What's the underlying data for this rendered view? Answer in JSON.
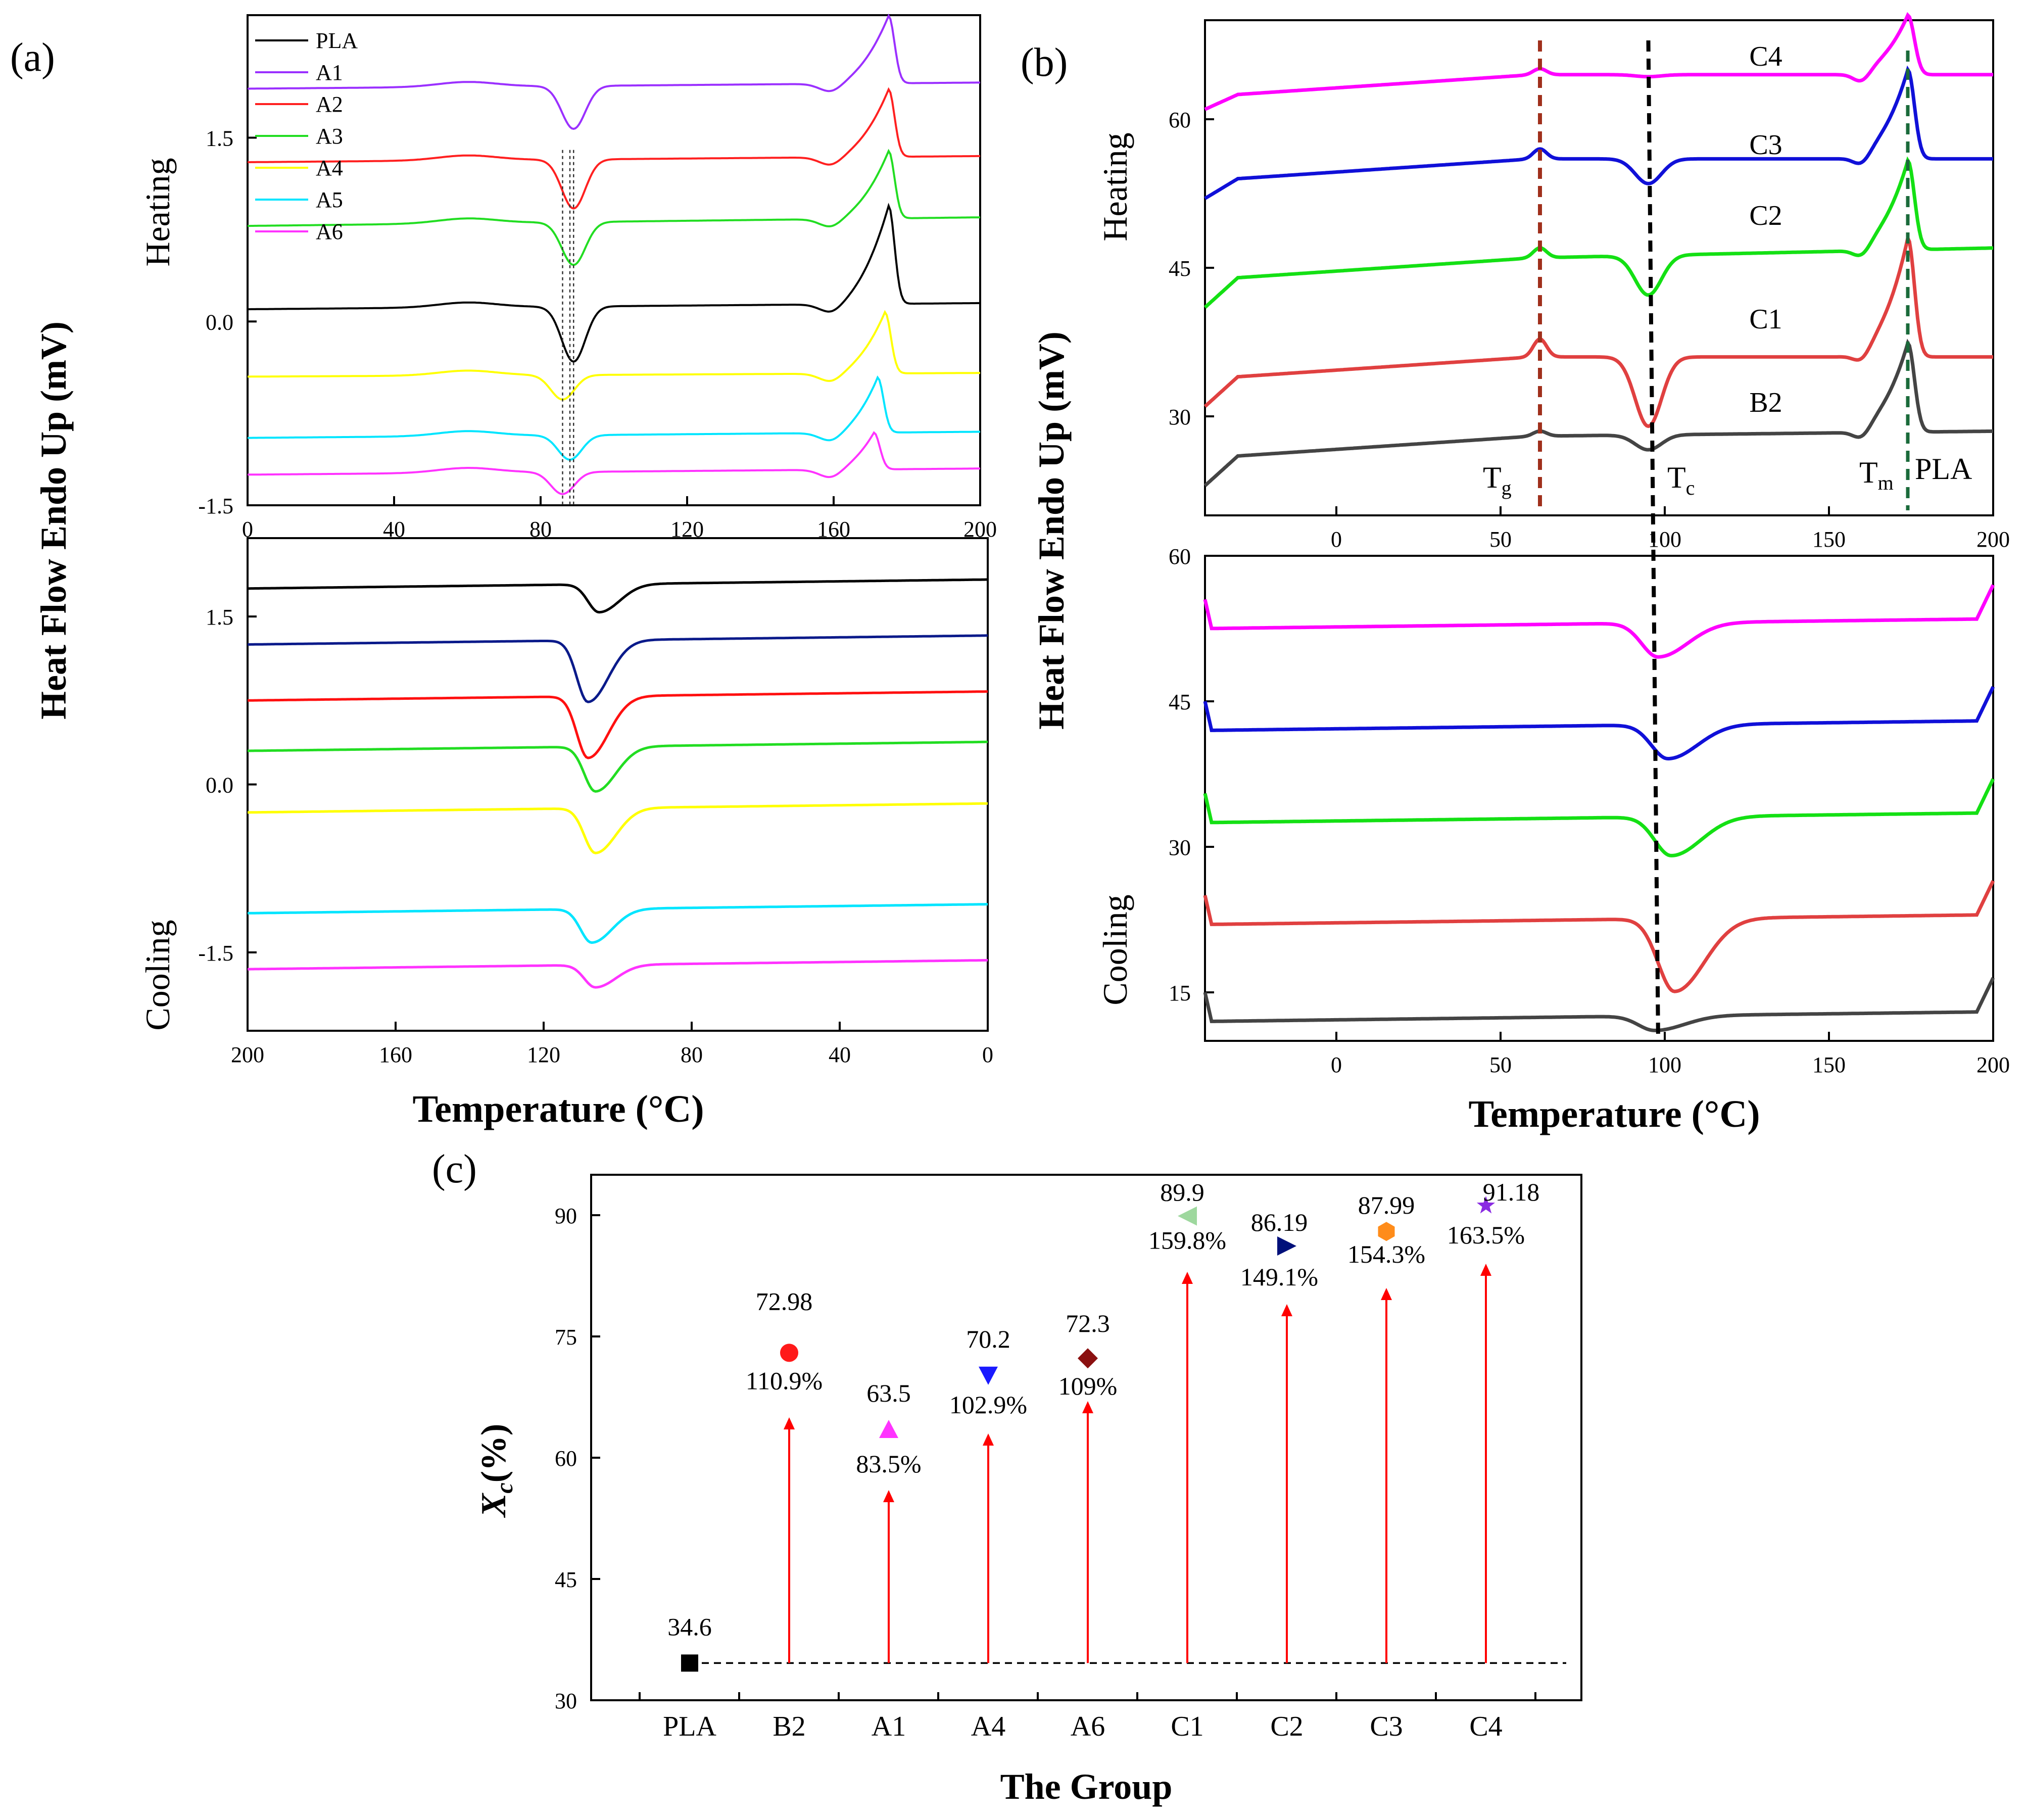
{
  "panel_labels": {
    "a": "(a)",
    "b": "(b)",
    "c": "(c)"
  },
  "colors": {
    "PLA": "#000000",
    "A1": "#9b30ff",
    "A2": "#ff2020",
    "A3": "#22dd22",
    "A4": "#ffff00",
    "A5": "#00e5ff",
    "A6": "#ff33ff",
    "C4": "#ff00ff",
    "C3": "#1010d8",
    "C2": "#14e014",
    "C1": "#e04040",
    "B2": "#444444",
    "Tg_line": "#a0301c",
    "Tc_line": "#000000",
    "Tm_line": "#1a6a3a",
    "arrow": "#ff0000"
  },
  "chart_data": [
    {
      "id": "a",
      "type": "line",
      "title": "",
      "ylabel": "Heat Flow Endo Up (mV)",
      "xlabel": "Temperature (°C)",
      "heating": {
        "label": "Heating",
        "xlim": [
          0,
          200
        ],
        "ylim": [
          -1.5,
          2.5
        ],
        "xticks": [
          "0",
          "40",
          "80",
          "120",
          "160",
          "200"
        ],
        "yticks": [
          "-1.5",
          "0.0",
          "1.5"
        ],
        "legend": [
          "PLA",
          "A1",
          "A2",
          "A3",
          "A4",
          "A5",
          "A6"
        ],
        "legend_position": "top-left",
        "series": [
          {
            "name": "A1",
            "baseline": 1.9,
            "baseline_end": 1.95,
            "tc": 89,
            "tc_depth": 0.35,
            "tm": 175,
            "tm_height": 0.55
          },
          {
            "name": "A2",
            "baseline": 1.3,
            "baseline_end": 1.35,
            "tc": 89,
            "tc_depth": 0.4,
            "tm": 175,
            "tm_height": 0.55
          },
          {
            "name": "A3",
            "baseline": 0.78,
            "baseline_end": 0.85,
            "tc": 89,
            "tc_depth": 0.35,
            "tm": 175,
            "tm_height": 0.55
          },
          {
            "name": "PLA",
            "baseline": 0.1,
            "baseline_end": 0.15,
            "tc": 89,
            "tc_depth": 0.45,
            "tm": 175,
            "tm_height": 0.8
          },
          {
            "name": "A4",
            "baseline": -0.45,
            "baseline_end": -0.42,
            "tc": 86,
            "tc_depth": 0.2,
            "tm": 174,
            "tm_height": 0.5
          },
          {
            "name": "A5",
            "baseline": -0.95,
            "baseline_end": -0.9,
            "tc": 88,
            "tc_depth": 0.2,
            "tm": 172,
            "tm_height": 0.45
          },
          {
            "name": "A6",
            "baseline": -1.25,
            "baseline_end": -1.2,
            "tc": 86,
            "tc_depth": 0.18,
            "tm": 171,
            "tm_height": 0.3
          }
        ]
      },
      "cooling": {
        "label": "Cooling",
        "xlim": [
          200,
          0
        ],
        "ylim": [
          -2.2,
          2.2
        ],
        "xticks": [
          "200",
          "160",
          "120",
          "80",
          "40",
          "0"
        ],
        "yticks": [
          "-1.5",
          "0.0",
          "1.5"
        ],
        "series": [
          {
            "name": "PLA",
            "baseline": 1.75,
            "tp": 105,
            "depth": 0.25
          },
          {
            "name": "A1",
            "baseline": 1.25,
            "tp": 108,
            "depth": 0.55
          },
          {
            "name": "A2",
            "baseline": 0.75,
            "tp": 108,
            "depth": 0.55
          },
          {
            "name": "A3",
            "baseline": 0.3,
            "tp": 106,
            "depth": 0.4
          },
          {
            "name": "A4",
            "baseline": -0.25,
            "tp": 106,
            "depth": 0.4
          },
          {
            "name": "A5",
            "baseline": -1.15,
            "tp": 107,
            "depth": 0.3
          },
          {
            "name": "A6",
            "baseline": -1.65,
            "tp": 106,
            "depth": 0.2
          }
        ]
      }
    },
    {
      "id": "b",
      "type": "line",
      "title": "",
      "ylabel": "Heat Flow Endo Up (mV)",
      "xlabel": "Temperature (°C)",
      "heating": {
        "label": "Heating",
        "xlim": [
          -40,
          200
        ],
        "ylim": [
          20,
          70
        ],
        "xticks": [
          "0",
          "50",
          "100",
          "150",
          "200"
        ],
        "yticks": [
          "30",
          "45",
          "60"
        ],
        "series": [
          {
            "name": "C4",
            "start": 61,
            "mid": 64.5,
            "end": 64.5,
            "tg_bump": 0.6,
            "tc_depth": 0.2,
            "tm": 173,
            "tm_height": 6
          },
          {
            "name": "C3",
            "start": 52,
            "mid": 56,
            "end": 56,
            "tg_bump": 1,
            "tc_depth": 2.5,
            "tm": 174,
            "tm_height": 9
          },
          {
            "name": "C2",
            "start": 41,
            "mid": 46,
            "end": 47,
            "tg_bump": 1,
            "tc_depth": 4,
            "tm": 174,
            "tm_height": 9
          },
          {
            "name": "C1",
            "start": 31,
            "mid": 36,
            "end": 36,
            "tg_bump": 1.8,
            "tc_depth": 7,
            "tm": 174,
            "tm_height": 12
          },
          {
            "name": "B2",
            "start": 23,
            "mid": 28,
            "end": 28.5,
            "tg_bump": 0.5,
            "tc_depth": 1.5,
            "tm": 176,
            "tm_height": 9
          }
        ],
        "annotations": [
          "T",
          "g",
          "T",
          "c",
          "T",
          "m",
          "PLA"
        ]
      },
      "cooling": {
        "label": "Cooling",
        "xlim": [
          -40,
          200
        ],
        "ylim": [
          10,
          60
        ],
        "xticks": [
          "0",
          "50",
          "100",
          "150",
          "200"
        ],
        "yticks": [
          "15",
          "30",
          "45",
          "60"
        ],
        "series": [
          {
            "name": "C4",
            "baseline": 52.5,
            "tp": 98,
            "depth": 3.5
          },
          {
            "name": "C3",
            "baseline": 42,
            "tp": 101,
            "depth": 3.5
          },
          {
            "name": "C2",
            "baseline": 32.5,
            "tp": 102,
            "depth": 4
          },
          {
            "name": "C1",
            "baseline": 22,
            "tp": 103,
            "depth": 7.5
          },
          {
            "name": "B2",
            "baseline": 12,
            "tp": 97,
            "depth": 1.5
          }
        ],
        "tg_line_x": 62,
        "tc_line_x": 96,
        "tm_line_x": 174
      }
    },
    {
      "id": "c",
      "type": "scatter",
      "title": "",
      "xlabel": "The Group",
      "ylabel_main": "X",
      "ylabel_sub": "c",
      "ylabel_suffix": "(%)",
      "ylim": [
        30,
        95
      ],
      "yticks": [
        "30",
        "45",
        "60",
        "75",
        "90"
      ],
      "categories": [
        "PLA",
        "B2",
        "A1",
        "A4",
        "A6",
        "C1",
        "C2",
        "C3",
        "C4"
      ],
      "values": [
        34.6,
        72.98,
        63.5,
        70.2,
        72.3,
        89.9,
        86.19,
        87.99,
        91.18
      ],
      "value_labels": [
        "34.6",
        "72.98",
        "63.5",
        "70.2",
        "72.3",
        "89.9",
        "86.19",
        "87.99",
        "91.18"
      ],
      "increase_labels": [
        "",
        "110.9%",
        "83.5%",
        "102.9%",
        "109%",
        "159.8%",
        "149.1%",
        "154.3%",
        "163.5%"
      ],
      "arrow_tops": [
        null,
        65,
        56,
        63,
        67,
        83,
        79,
        81,
        84
      ],
      "marker_colors": [
        "#000000",
        "#ff1a1a",
        "#ff33ff",
        "#1a1aff",
        "#8b1010",
        "#9ed89e",
        "#00107a",
        "#ff8c1a",
        "#8a2be2"
      ],
      "marker_shapes": [
        "square",
        "circle",
        "triangle-up",
        "triangle-down",
        "diamond",
        "triangle-left",
        "triangle-right",
        "hexagon",
        "star"
      ],
      "reference_line": 34.6
    }
  ]
}
